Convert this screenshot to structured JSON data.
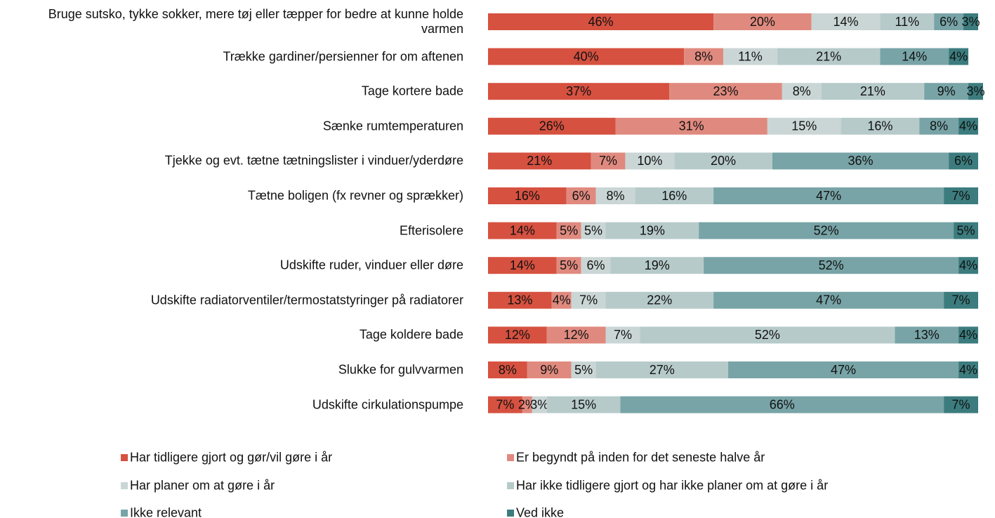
{
  "chart_data": {
    "type": "stacked_barh",
    "categories": [
      "Bruge sutsko, tykke sokker, mere tøj eller tæpper for bedre at kunne holde varmen",
      "Trække gardiner/persienner for om aftenen",
      "Tage kortere bade",
      "Sænke rumtemperaturen",
      "Tjekke og evt. tætne tætningslister i vinduer/yderdøre",
      "Tætne boligen (fx revner og sprækker)",
      "Efterisolere",
      "Udskifte ruder, vinduer eller døre",
      "Udskifte radiatorventiler/termostatstyringer på radiatorer",
      "Tage koldere bade",
      "Slukke for gulvvarmen",
      "Udskifte cirkulationspumpe"
    ],
    "xlim": [
      0,
      100
    ],
    "series": [
      {
        "name": "Har tidligere gjort og gør/vil gøre i år",
        "color": "#d65140",
        "values": [
          46,
          40,
          37,
          26,
          21,
          16,
          14,
          14,
          13,
          12,
          8,
          7
        ],
        "value_labels": [
          "46%",
          "40%",
          "37%",
          "26%",
          "21%",
          "16%",
          "14%",
          "14%",
          "13%",
          "12%",
          "8%",
          "7%"
        ]
      },
      {
        "name": "Er begyndt på inden for det seneste halve år",
        "color": "#e08a7f",
        "values": [
          20,
          8,
          23,
          31,
          7,
          6,
          5,
          5,
          4,
          12,
          9,
          2
        ],
        "value_labels": [
          "20%",
          "8%",
          "23%",
          "31%",
          "7%",
          "6%",
          "5%",
          "5%",
          "4%",
          "12%",
          "9%",
          "2%"
        ]
      },
      {
        "name": "Har planer om at gøre i år",
        "color": "#cad6d5",
        "values": [
          14,
          11,
          8,
          15,
          10,
          8,
          5,
          6,
          7,
          7,
          5,
          3
        ],
        "value_labels": [
          "14%",
          "11%",
          "8%",
          "15%",
          "10%",
          "8%",
          "5%",
          "6%",
          "7%",
          "7%",
          "5%",
          "3%"
        ]
      },
      {
        "name": "Har ikke tidligere gjort og har ikke planer om at gøre i år",
        "color": "#b7caca",
        "values": [
          11,
          21,
          21,
          16,
          20,
          16,
          19,
          19,
          22,
          52,
          27,
          15
        ],
        "value_labels": [
          "11%",
          "21%",
          "21%",
          "16%",
          "20%",
          "16%",
          "19%",
          "19%",
          "22%",
          "52%",
          "27%",
          "15%"
        ]
      },
      {
        "name": "Ikke relevant",
        "color": "#78a4a7",
        "values": [
          6,
          14,
          9,
          8,
          36,
          47,
          52,
          52,
          47,
          13,
          47,
          66
        ],
        "value_labels": [
          "6%",
          "14%",
          "9%",
          "8%",
          "36%",
          "47%",
          "52%",
          "52%",
          "47%",
          "13%",
          "47%",
          "66%"
        ]
      },
      {
        "name": "Ved ikke",
        "color": "#3c7c7e",
        "values": [
          3,
          4,
          3,
          4,
          6,
          7,
          5,
          4,
          7,
          4,
          4,
          7
        ],
        "value_labels": [
          "3%",
          "4%",
          "3%",
          "4%",
          "6%",
          "7%",
          "5%",
          "4%",
          "7%",
          "4%",
          "4%",
          "7%"
        ]
      }
    ]
  }
}
